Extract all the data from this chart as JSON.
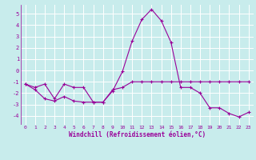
{
  "xlabel": "Windchill (Refroidissement éolien,°C)",
  "ylabel": "",
  "background_color": "#c8ecec",
  "line_color": "#990099",
  "grid_color": "#ffffff",
  "xlim": [
    -0.5,
    23.5
  ],
  "ylim": [
    -4.8,
    5.8
  ],
  "yticks": [
    -4,
    -3,
    -2,
    -1,
    0,
    1,
    2,
    3,
    4,
    5
  ],
  "xticks": [
    0,
    1,
    2,
    3,
    4,
    5,
    6,
    7,
    8,
    9,
    10,
    11,
    12,
    13,
    14,
    15,
    16,
    17,
    18,
    19,
    20,
    21,
    22,
    23
  ],
  "line1_x": [
    0,
    1,
    2,
    3,
    4,
    5,
    6,
    7,
    8,
    9,
    10,
    11,
    12,
    13,
    14,
    15,
    16,
    17,
    18,
    19,
    20,
    21,
    22,
    23
  ],
  "line1_y": [
    -1.2,
    -1.5,
    -1.2,
    -2.5,
    -1.2,
    -1.5,
    -1.5,
    -2.8,
    -2.8,
    -1.7,
    -1.5,
    -1.0,
    -1.0,
    -1.0,
    -1.0,
    -1.0,
    -1.0,
    -1.0,
    -1.0,
    -1.0,
    -1.0,
    -1.0,
    -1.0,
    -1.0
  ],
  "line2_x": [
    0,
    1,
    2,
    3,
    4,
    5,
    6,
    7,
    8,
    9,
    10,
    11,
    12,
    13,
    14,
    15,
    16,
    17,
    18,
    19,
    20,
    21,
    22,
    23
  ],
  "line2_y": [
    -1.2,
    -1.7,
    -2.5,
    -2.7,
    -2.3,
    -2.7,
    -2.8,
    -2.8,
    -2.8,
    -1.8,
    -0.1,
    2.6,
    4.5,
    5.4,
    4.4,
    2.5,
    -1.5,
    -1.5,
    -2.0,
    -3.3,
    -3.3,
    -3.8,
    -4.1,
    -3.7
  ],
  "tick_fontsize": 4.5,
  "xlabel_fontsize": 5.5
}
